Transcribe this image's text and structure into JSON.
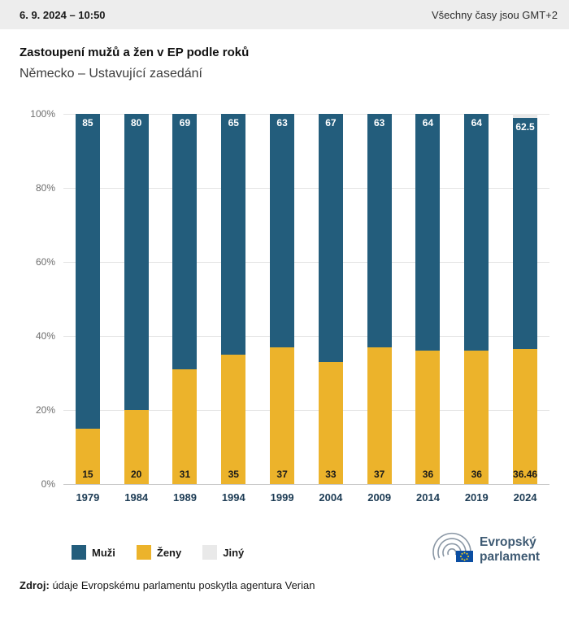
{
  "topbar": {
    "datetime": "6. 9. 2024 – 10:50",
    "timezone": "Všechny časy jsou GMT+2"
  },
  "title": "Zastoupení mužů a žen v EP podle roků",
  "subtitle": "Německo – Ustavující zasedání",
  "chart_data": {
    "type": "bar",
    "variant": "stacked-percent",
    "title": "Zastoupení mužů a žen v EP podle roků",
    "subtitle": "Německo – Ustavující zasedání",
    "categories": [
      "1979",
      "1984",
      "1989",
      "1994",
      "1999",
      "2004",
      "2009",
      "2014",
      "2019",
      "2024"
    ],
    "series": [
      {
        "name": "Muži",
        "color": "#235d7c",
        "values": [
          85,
          80,
          69,
          65,
          63,
          67,
          63,
          64,
          64,
          62.5
        ]
      },
      {
        "name": "Ženy",
        "color": "#ecb32b",
        "values": [
          15,
          20,
          31,
          35,
          37,
          33,
          37,
          36,
          36,
          36.46
        ]
      }
    ],
    "ylim": [
      0,
      100
    ],
    "yticks": [
      0,
      20,
      40,
      60,
      80,
      100
    ],
    "ytick_suffix": "%",
    "grid": true,
    "legend_position": "bottom-left"
  },
  "legend": [
    {
      "label": "Muži",
      "color": "#235d7c"
    },
    {
      "label": "Ženy",
      "color": "#ecb32b"
    },
    {
      "label": "Jiný",
      "color": "#e9e9e9"
    }
  ],
  "source": {
    "label": "Zdroj:",
    "text": "údaje Evropskému parlamentu poskytla agentura Verian"
  },
  "logo": {
    "line1": "Evropský",
    "line2": "parlament"
  }
}
